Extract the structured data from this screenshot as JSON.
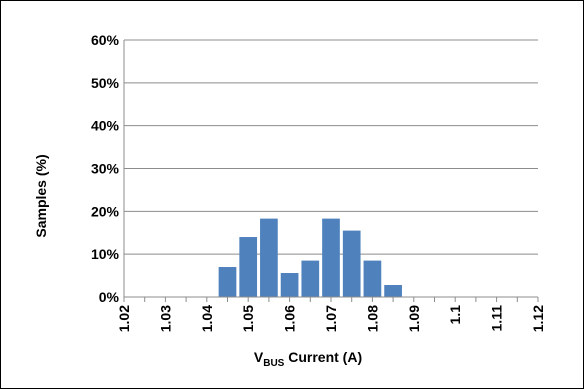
{
  "chart_data": {
    "type": "bar",
    "xlabel": {
      "main": "V",
      "subscript": "BUS",
      "rest": " Current (A)"
    },
    "ylabel": "Samples (%)",
    "x_ticks": [
      "1.02",
      "1.03",
      "1.04",
      "1.05",
      "1.06",
      "1.07",
      "1.08",
      "1.09",
      "1.1",
      "1.11",
      "1.12"
    ],
    "y_ticks": [
      "0%",
      "10%",
      "20%",
      "30%",
      "40%",
      "50%",
      "60%"
    ],
    "xlim": [
      1.02,
      1.12
    ],
    "ylim": [
      0,
      60
    ],
    "bin_width": 0.005,
    "bins": [
      {
        "center": 1.045,
        "value": 7
      },
      {
        "center": 1.05,
        "value": 14
      },
      {
        "center": 1.055,
        "value": 18.3
      },
      {
        "center": 1.06,
        "value": 5.6
      },
      {
        "center": 1.065,
        "value": 8.5
      },
      {
        "center": 1.07,
        "value": 18.3
      },
      {
        "center": 1.075,
        "value": 15.5
      },
      {
        "center": 1.08,
        "value": 8.5
      },
      {
        "center": 1.085,
        "value": 2.8
      }
    ],
    "bar_color": "#4f81bd",
    "grid": true,
    "legend": "none"
  }
}
